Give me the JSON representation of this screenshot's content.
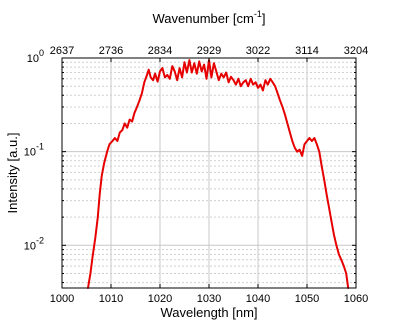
{
  "chart_data": {
    "type": "line",
    "title": "",
    "xlabel": "Wavelength [nm]",
    "ylabel": "Intensity [a.u.]",
    "x2label": "Wavenumber [cm",
    "x2label_sup": "-1",
    "x2label_end": "]",
    "xlim": [
      1000,
      1060
    ],
    "ylim": [
      0.0035,
      1.0
    ],
    "yscale": "log",
    "grid": true,
    "x_ticks": [
      1000,
      1010,
      1020,
      1030,
      1040,
      1050,
      1060
    ],
    "x_tick_labels": [
      "1000",
      "1010",
      "1020",
      "1030",
      "1040",
      "1050",
      "1060"
    ],
    "y_major_ticks": [
      {
        "value": 0.01,
        "base": "10",
        "exp": "-2"
      },
      {
        "value": 0.1,
        "base": "10",
        "exp": "-1"
      },
      {
        "value": 1,
        "base": "10",
        "exp": "0"
      }
    ],
    "top_ticks": [
      {
        "x": 1000,
        "label": "2637"
      },
      {
        "x": 1010,
        "label": "2736"
      },
      {
        "x": 1020,
        "label": "2834"
      },
      {
        "x": 1030,
        "label": "2929"
      },
      {
        "x": 1040,
        "label": "3022"
      },
      {
        "x": 1050,
        "label": "3114"
      },
      {
        "x": 1060,
        "label": "3204"
      }
    ],
    "series": [
      {
        "color": "#e60000",
        "x": [
          1005.3,
          1005.8,
          1006.3,
          1006.8,
          1007.3,
          1007.7,
          1008.1,
          1008.6,
          1009.2,
          1009.7,
          1010.3,
          1010.8,
          1011.3,
          1011.8,
          1012.3,
          1012.8,
          1013.3,
          1013.8,
          1014.3,
          1014.8,
          1015.3,
          1015.8,
          1016.3,
          1016.8,
          1017.3,
          1017.7,
          1018.1,
          1018.6,
          1019.0,
          1019.5,
          1020.0,
          1020.5,
          1021.0,
          1021.5,
          1022.0,
          1022.5,
          1023.0,
          1023.5,
          1024.0,
          1024.5,
          1025.0,
          1025.5,
          1026.0,
          1026.5,
          1027.0,
          1027.5,
          1028.0,
          1028.5,
          1029.0,
          1029.5,
          1030.0,
          1030.5,
          1031.0,
          1031.5,
          1032.0,
          1032.5,
          1033.0,
          1033.5,
          1034.0,
          1034.5,
          1035.0,
          1035.5,
          1036.0,
          1036.5,
          1037.0,
          1037.5,
          1038.0,
          1038.5,
          1039.0,
          1039.5,
          1040.0,
          1040.5,
          1041.0,
          1041.5,
          1042.0,
          1042.5,
          1043.0,
          1043.5,
          1044.0,
          1044.5,
          1045.0,
          1045.5,
          1046.0,
          1046.5,
          1047.0,
          1047.5,
          1048.0,
          1048.5,
          1049.0,
          1049.5,
          1050.0,
          1050.5,
          1051.0,
          1051.5,
          1052.0,
          1052.5,
          1053.0,
          1053.5,
          1054.0,
          1054.5,
          1055.0,
          1055.5,
          1056.0,
          1056.5,
          1057.0,
          1057.5,
          1058.0,
          1058.4
        ],
        "y": [
          0.0035,
          0.005,
          0.008,
          0.012,
          0.02,
          0.035,
          0.055,
          0.075,
          0.1,
          0.12,
          0.13,
          0.14,
          0.13,
          0.16,
          0.17,
          0.2,
          0.18,
          0.22,
          0.21,
          0.26,
          0.3,
          0.35,
          0.42,
          0.55,
          0.65,
          0.75,
          0.62,
          0.58,
          0.68,
          0.56,
          0.72,
          0.78,
          0.62,
          0.66,
          0.6,
          0.82,
          0.72,
          0.58,
          0.78,
          0.62,
          0.9,
          0.7,
          0.95,
          0.7,
          0.88,
          0.68,
          0.92,
          0.72,
          0.85,
          0.6,
          0.95,
          0.62,
          0.88,
          0.72,
          0.58,
          0.68,
          0.62,
          0.7,
          0.55,
          0.63,
          0.58,
          0.52,
          0.6,
          0.5,
          0.55,
          0.58,
          0.5,
          0.6,
          0.52,
          0.55,
          0.48,
          0.52,
          0.45,
          0.58,
          0.52,
          0.6,
          0.55,
          0.5,
          0.42,
          0.35,
          0.3,
          0.25,
          0.2,
          0.16,
          0.13,
          0.11,
          0.1,
          0.105,
          0.09,
          0.12,
          0.13,
          0.14,
          0.13,
          0.14,
          0.12,
          0.1,
          0.07,
          0.05,
          0.035,
          0.025,
          0.018,
          0.013,
          0.01,
          0.008,
          0.007,
          0.006,
          0.005,
          0.0035
        ]
      }
    ]
  }
}
